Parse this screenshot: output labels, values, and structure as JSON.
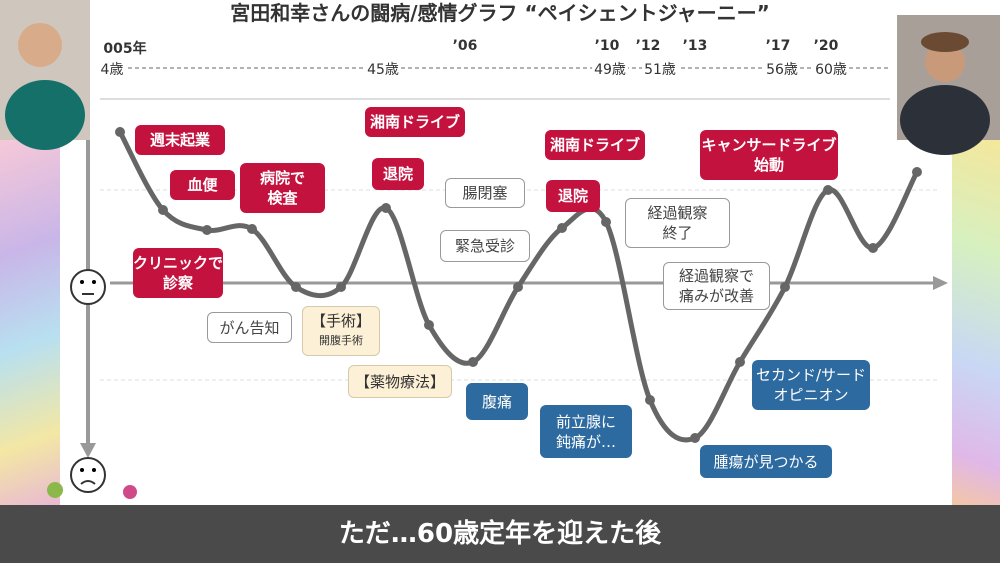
{
  "header": {
    "title": "宮田和幸さんの闘病/感情グラフ “ペイシェントジャーニー”"
  },
  "timeline": {
    "years": [
      "005年",
      "’06",
      "’10",
      "’12",
      "’13",
      "’17",
      "’20"
    ],
    "ages": [
      "4歳",
      "45歳",
      "49歳",
      "51歳",
      "56歳",
      "60歳"
    ]
  },
  "callouts": [
    {
      "lines": [
        "週末起業"
      ]
    },
    {
      "lines": [
        "血便"
      ]
    },
    {
      "lines": [
        "病院で",
        "検査"
      ]
    },
    {
      "lines": [
        "クリニックで",
        "診察"
      ]
    },
    {
      "lines": [
        "湘南ドライブ"
      ]
    },
    {
      "lines": [
        "退院"
      ]
    },
    {
      "lines": [
        "腸閉塞"
      ]
    },
    {
      "lines": [
        "緊急受診"
      ]
    },
    {
      "lines": [
        "湘南ドライブ"
      ]
    },
    {
      "lines": [
        "退院"
      ]
    },
    {
      "lines": [
        "経過観察",
        "終了"
      ]
    },
    {
      "lines": [
        "がん告知"
      ]
    },
    {
      "lines": [
        "【手術】",
        "開腹手術"
      ]
    },
    {
      "lines": [
        "【薬物療法】"
      ]
    },
    {
      "lines": [
        "腹痛"
      ]
    },
    {
      "lines": [
        "経過観察で",
        "痛みが改善"
      ]
    },
    {
      "lines": [
        "キャンサードライブ",
        "始動"
      ]
    },
    {
      "lines": [
        "セカンド/サード",
        "オピニオン"
      ]
    },
    {
      "lines": [
        "前立腺に",
        "鈍痛が…"
      ]
    },
    {
      "lines": [
        "腫瘍が見つかる"
      ]
    }
  ],
  "caption": "ただ…60歳定年を迎えた後"
}
